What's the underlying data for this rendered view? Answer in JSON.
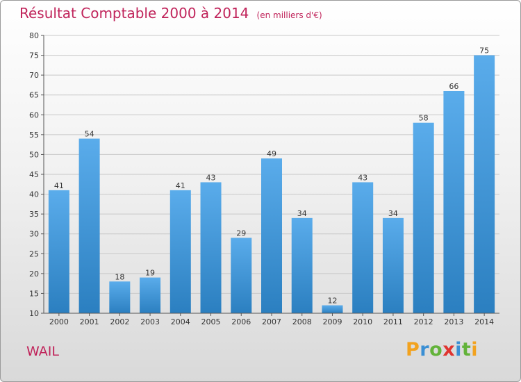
{
  "title": "Résultat Comptable 2000 à 2014",
  "subtitle": "(en milliers d'€)",
  "location": "WAIL",
  "logo": {
    "letters": [
      "P",
      "r",
      "o",
      "x",
      "i",
      "t",
      "i"
    ],
    "colors": [
      "#f2a21e",
      "#3a8fd4",
      "#63b33a",
      "#e0342f",
      "#3a8fd4",
      "#63b33a",
      "#f2a21e"
    ]
  },
  "colors": {
    "bar_top": "#5aaceb",
    "bar_bottom": "#2b7fc0",
    "title": "#c0235a",
    "grid": "#c8c8c8"
  },
  "chart_data": {
    "type": "bar",
    "categories": [
      "2000",
      "2001",
      "2002",
      "2003",
      "2004",
      "2005",
      "2006",
      "2007",
      "2008",
      "2009",
      "2010",
      "2011",
      "2012",
      "2013",
      "2014"
    ],
    "values": [
      41,
      54,
      18,
      19,
      41,
      43,
      29,
      49,
      34,
      12,
      43,
      34,
      58,
      66,
      75
    ],
    "ylim": [
      10,
      80
    ],
    "yticks": [
      10,
      15,
      20,
      25,
      30,
      35,
      40,
      45,
      50,
      55,
      60,
      65,
      70,
      75,
      80
    ],
    "grid": true,
    "xlabel": "",
    "ylabel": ""
  }
}
